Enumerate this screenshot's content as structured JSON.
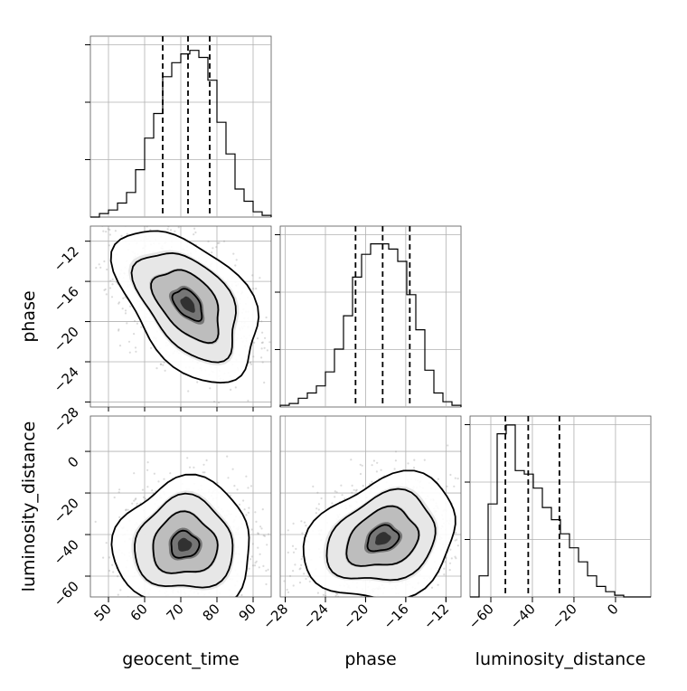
{
  "chart_data": {
    "type": "corner",
    "parameters": [
      {
        "name": "geocent_time",
        "label": "geocent_time",
        "range": [
          45,
          95
        ],
        "ticks": [
          50,
          60,
          70,
          80,
          90
        ],
        "quantiles": [
          65,
          72,
          78
        ]
      },
      {
        "name": "phase",
        "label": "phase",
        "range": [
          -28.5,
          -10.5
        ],
        "ticks": [
          -28,
          -24,
          -20,
          -16,
          -12
        ],
        "quantiles": [
          -21,
          -18.3,
          -15.6
        ]
      },
      {
        "name": "luminosity_distance",
        "label": "luminosity_distance",
        "range": [
          -70,
          17
        ],
        "ticks": [
          -60,
          -40,
          -20,
          0
        ],
        "quantiles": [
          -53,
          -42,
          -27
        ]
      }
    ],
    "histograms": [
      {
        "parameter": "geocent_time",
        "bin_edges": [
          45,
          47.5,
          50,
          52.5,
          55,
          57.5,
          60,
          62.5,
          65,
          67.5,
          70,
          72.5,
          75,
          77.5,
          80,
          82.5,
          85,
          87.5,
          90,
          92.5,
          95
        ],
        "counts": [
          0.0,
          0.02,
          0.04,
          0.08,
          0.14,
          0.27,
          0.45,
          0.59,
          0.8,
          0.88,
          0.93,
          0.95,
          0.91,
          0.78,
          0.54,
          0.36,
          0.16,
          0.09,
          0.03,
          0.01
        ]
      },
      {
        "parameter": "phase",
        "bin_edges": [
          -28.5,
          -27.6,
          -26.7,
          -25.8,
          -24.9,
          -24.0,
          -23.1,
          -22.2,
          -21.3,
          -20.4,
          -19.5,
          -18.6,
          -17.7,
          -16.8,
          -15.9,
          -15.0,
          -14.1,
          -13.2,
          -12.3,
          -11.4,
          -10.5
        ],
        "counts": [
          0.01,
          0.02,
          0.05,
          0.08,
          0.12,
          0.2,
          0.33,
          0.52,
          0.74,
          0.87,
          0.93,
          0.93,
          0.9,
          0.83,
          0.64,
          0.44,
          0.21,
          0.08,
          0.03,
          0.01
        ]
      },
      {
        "parameter": "luminosity_distance",
        "bin_edges": [
          -70,
          -65.65,
          -61.3,
          -56.95,
          -52.6,
          -48.25,
          -43.9,
          -39.55,
          -35.2,
          -30.85,
          -26.5,
          -22.15,
          -17.8,
          -13.45,
          -9.1,
          -4.75,
          -0.4,
          3.95,
          8.3,
          12.65,
          17.0
        ],
        "counts": [
          0.0,
          0.12,
          0.53,
          0.93,
          0.98,
          0.72,
          0.7,
          0.62,
          0.51,
          0.44,
          0.36,
          0.28,
          0.2,
          0.12,
          0.06,
          0.03,
          0.01,
          0.0,
          0.0,
          0.0
        ]
      }
    ],
    "pairs": [
      {
        "x": "geocent_time",
        "y": "phase",
        "center": [
          72,
          -18.3
        ],
        "covariance": [
          [
            64,
            -11.5
          ],
          [
            -11.5,
            9.5
          ]
        ]
      },
      {
        "x": "geocent_time",
        "y": "luminosity_distance",
        "center": [
          71,
          -45
        ],
        "covariance": [
          [
            60,
            1
          ],
          [
            1,
            160
          ]
        ]
      },
      {
        "x": "phase",
        "y": "luminosity_distance",
        "center": [
          -18.3,
          -42
        ],
        "covariance": [
          [
            9.5,
            9
          ],
          [
            9,
            150
          ]
        ]
      }
    ],
    "contour_levels": [
      "1-sigma",
      "2-sigma",
      "3-sigma"
    ],
    "grid": true
  }
}
